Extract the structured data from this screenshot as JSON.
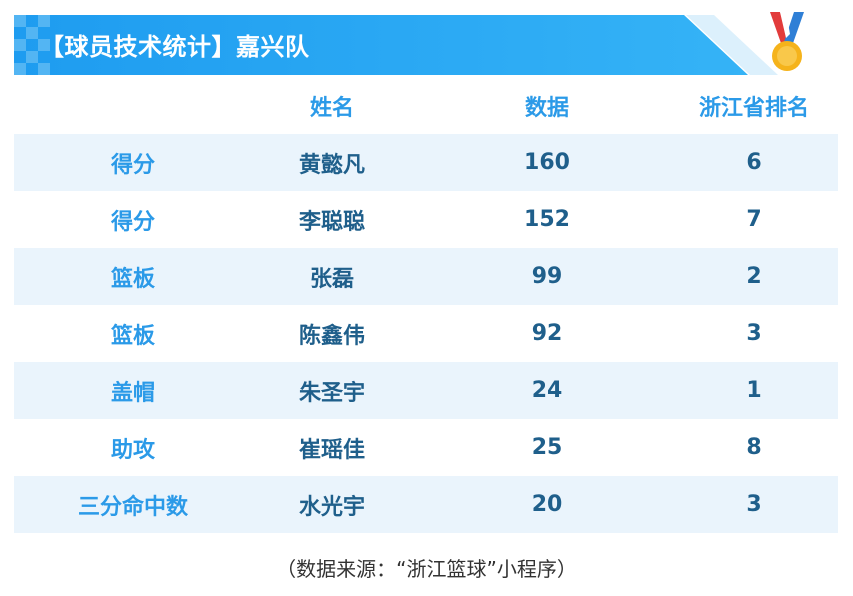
{
  "banner": {
    "title": "【球员技术统计】嘉兴队"
  },
  "table": {
    "headers": [
      "",
      "姓名",
      "数据",
      "浙江省排名"
    ],
    "rows": [
      {
        "category": "得分",
        "name": "黄懿凡",
        "value": "160",
        "rank": "6"
      },
      {
        "category": "得分",
        "name": "李聪聪",
        "value": "152",
        "rank": "7"
      },
      {
        "category": "篮板",
        "name": "张磊",
        "value": "99",
        "rank": "2"
      },
      {
        "category": "篮板",
        "name": "陈鑫伟",
        "value": "92",
        "rank": "3"
      },
      {
        "category": "盖帽",
        "name": "朱圣宇",
        "value": "24",
        "rank": "1"
      },
      {
        "category": "助攻",
        "name": "崔瑶佳",
        "value": "25",
        "rank": "8"
      },
      {
        "category": "三分命中数",
        "name": "水光宇",
        "value": "20",
        "rank": "3"
      }
    ]
  },
  "footer": {
    "source": "（数据来源：“浙江篮球”小程序）"
  },
  "colors": {
    "banner_blue": "#29a8f2",
    "header_text": "#2b9ae8",
    "value_text": "#1f5f8b",
    "row_stripe": "#eaf4fc",
    "medal_gold": "#f5b31b"
  },
  "icons": [
    "medal-icon",
    "checker-pattern-decoration"
  ]
}
